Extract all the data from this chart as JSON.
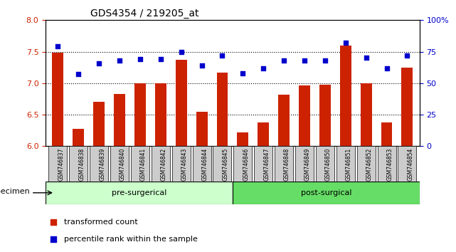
{
  "title": "GDS4354 / 219205_at",
  "samples": [
    "GSM746837",
    "GSM746838",
    "GSM746839",
    "GSM746840",
    "GSM746841",
    "GSM746842",
    "GSM746843",
    "GSM746844",
    "GSM746845",
    "GSM746846",
    "GSM746847",
    "GSM746848",
    "GSM746849",
    "GSM746850",
    "GSM746851",
    "GSM746852",
    "GSM746853",
    "GSM746854"
  ],
  "bar_values": [
    7.48,
    6.27,
    6.7,
    6.83,
    7.0,
    7.0,
    7.37,
    6.55,
    7.17,
    6.22,
    6.38,
    6.82,
    6.96,
    6.98,
    7.6,
    7.0,
    6.38,
    7.25
  ],
  "dot_values": [
    79,
    57,
    66,
    68,
    69,
    69,
    75,
    64,
    72,
    58,
    62,
    68,
    68,
    68,
    82,
    70,
    62,
    72
  ],
  "ylim_left": [
    6.0,
    8.0
  ],
  "ylim_right": [
    0,
    100
  ],
  "yticks_left": [
    6.0,
    6.5,
    7.0,
    7.5,
    8.0
  ],
  "yticks_right": [
    0,
    25,
    50,
    75,
    100
  ],
  "ytick_labels_right": [
    "0",
    "25",
    "50",
    "75",
    "100%"
  ],
  "grid_lines": [
    6.5,
    7.0,
    7.5
  ],
  "bar_color": "#cc2200",
  "dot_color": "#0000cc",
  "pre_surgical_count": 9,
  "post_surgical_count": 9,
  "pre_label": "pre-surgerical",
  "post_label": "post-surgical",
  "group_bg_pre": "#ccffcc",
  "group_bg_post": "#66dd66",
  "specimen_label": "specimen",
  "legend_bar_label": "transformed count",
  "legend_dot_label": "percentile rank within the sample",
  "axis_label_color_left": "#cc2200",
  "axis_label_color_right": "#0000cc",
  "tick_area_bg": "#cccccc"
}
